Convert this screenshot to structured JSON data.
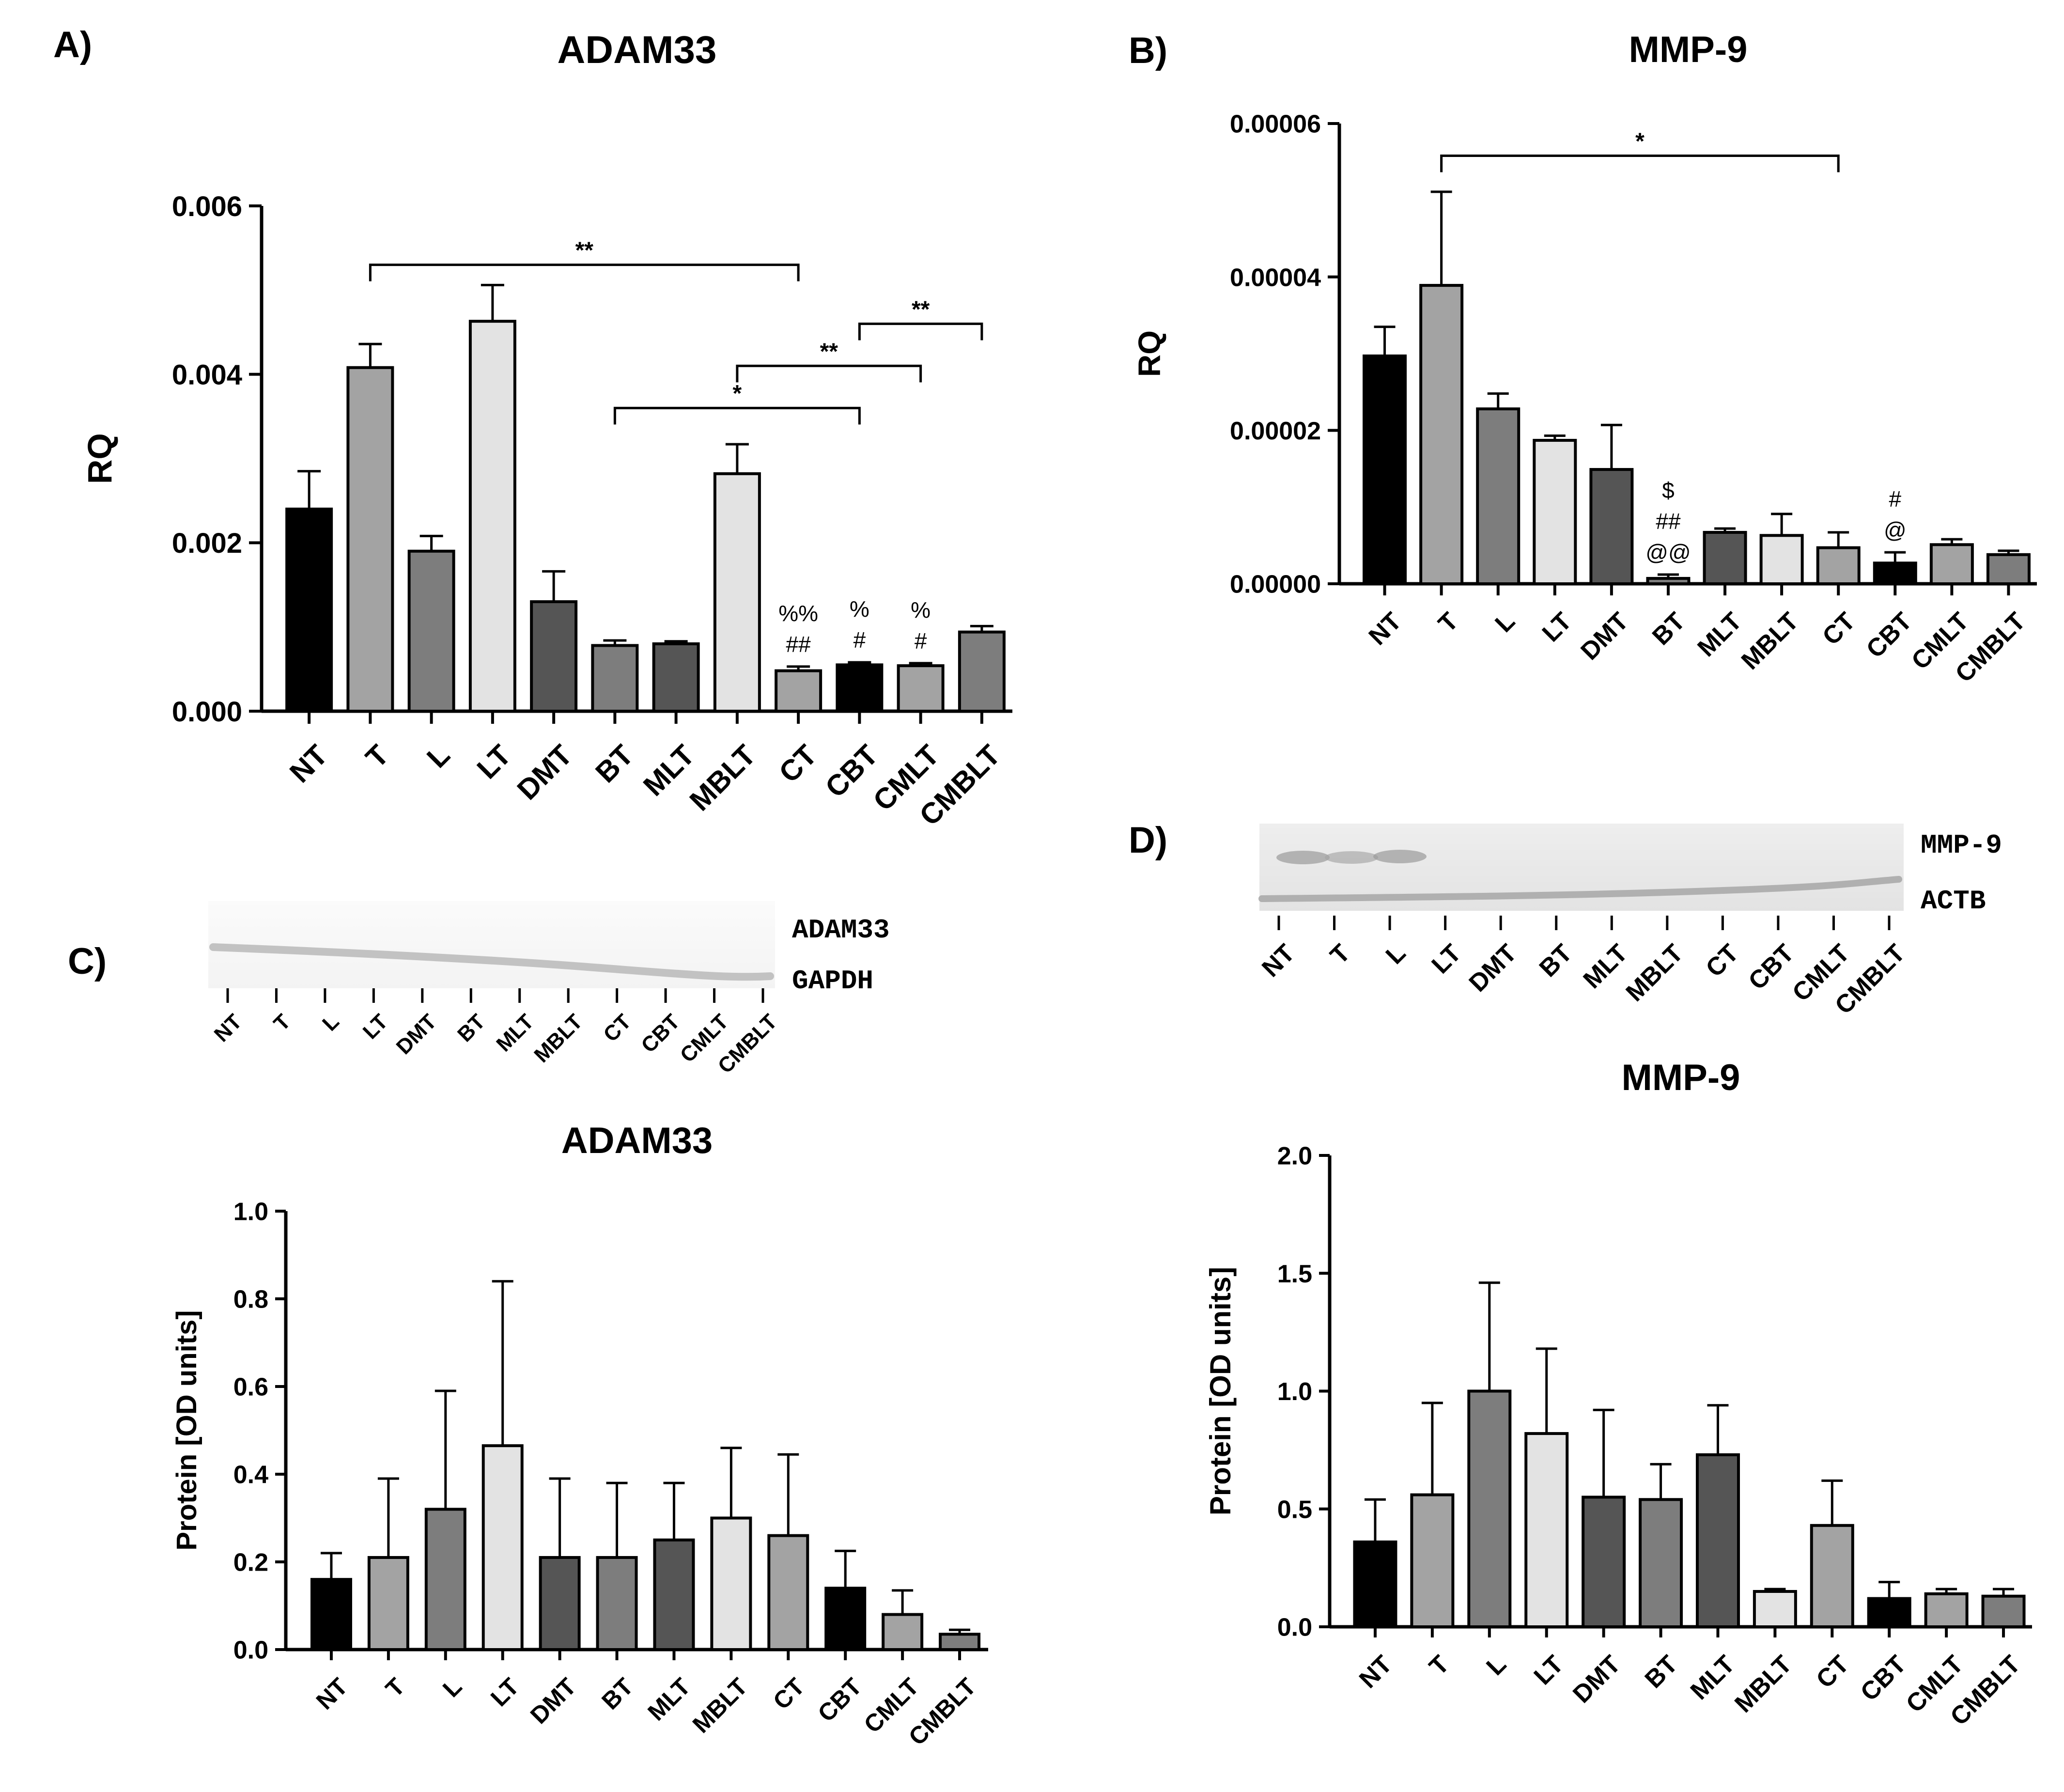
{
  "figure": {
    "panel_labels": {
      "a": "A)",
      "b": "B)",
      "c": "C)",
      "d": "D)"
    },
    "blot_c": {
      "label_top": "ADAM33",
      "label_bottom": "GAPDH",
      "lanes": [
        "NT",
        "T",
        "L",
        "LT",
        "DMT",
        "BT",
        "MLT",
        "MBLT",
        "CT",
        "CBT",
        "CMLT",
        "CMBLT"
      ]
    },
    "blot_d": {
      "label_top": "MMP-9",
      "label_bottom": "ACTB",
      "lanes": [
        "NT",
        "T",
        "L",
        "LT",
        "DMT",
        "BT",
        "MLT",
        "MBLT",
        "CT",
        "CBT",
        "CMLT",
        "CMBLT"
      ]
    }
  },
  "chart_data": [
    {
      "id": "A",
      "type": "bar",
      "title": "ADAM33",
      "xlabel": "",
      "ylabel": "RQ",
      "ylim": [
        0,
        0.006
      ],
      "yticks": [
        "0.000",
        "0.002",
        "0.004",
        "0.006"
      ],
      "categories": [
        "NT",
        "T",
        "L",
        "LT",
        "DMT",
        "BT",
        "MLT",
        "MBLT",
        "CT",
        "CBT",
        "CMLT",
        "CMBLT"
      ],
      "values": [
        0.0024,
        0.00408,
        0.0019,
        0.00463,
        0.0013,
        0.00078,
        0.0008,
        0.00282,
        0.00048,
        0.00055,
        0.00054,
        0.00094
      ],
      "errors": [
        0.00045,
        0.00028,
        0.00018,
        0.00043,
        0.00036,
        6e-05,
        3e-05,
        0.00035,
        5e-05,
        3e-05,
        3e-05,
        7e-05
      ],
      "colors": [
        "#000000",
        "#a3a3a3",
        "#7d7d7d",
        "#e3e3e3",
        "#555555",
        "#7d7d7d",
        "#555555",
        "#e3e3e3",
        "#a3a3a3",
        "#000000",
        "#a3a3a3",
        "#7d7d7d"
      ],
      "brackets": [
        {
          "from": 1,
          "to": 8,
          "y": 0.0053,
          "label": "**"
        },
        {
          "from": 9,
          "to": 11,
          "y": 0.0046,
          "label": "**"
        },
        {
          "from": 7,
          "to": 10,
          "y": 0.0041,
          "label": "**"
        },
        {
          "from": 5,
          "to": 9,
          "y": 0.0036,
          "label": "*"
        }
      ],
      "annotations": [
        {
          "index": 8,
          "lines": [
            "%%",
            "##"
          ]
        },
        {
          "index": 9,
          "lines": [
            "%",
            "#"
          ]
        },
        {
          "index": 10,
          "lines": [
            "%",
            "#"
          ]
        }
      ]
    },
    {
      "id": "B",
      "type": "bar",
      "title": "MMP-9",
      "xlabel": "",
      "ylabel": "RQ",
      "ylim": [
        0,
        6e-05
      ],
      "yticks": [
        "0.00000",
        "0.00002",
        "0.00004",
        "0.00006"
      ],
      "categories": [
        "NT",
        "T",
        "L",
        "LT",
        "DMT",
        "BT",
        "MLT",
        "MBLT",
        "CT",
        "CBT",
        "CMLT",
        "CMBLT"
      ],
      "values": [
        2.97e-05,
        3.89e-05,
        2.28e-05,
        1.87e-05,
        1.49e-05,
        7e-07,
        6.7e-06,
        6.3e-06,
        4.7e-06,
        2.7e-06,
        5.1e-06,
        3.8e-06
      ],
      "errors": [
        3.8e-06,
        1.22e-05,
        2e-06,
        6e-07,
        5.8e-06,
        5e-07,
        5e-07,
        2.8e-06,
        2e-06,
        1.4e-06,
        7e-07,
        5e-07
      ],
      "colors": [
        "#000000",
        "#a3a3a3",
        "#7d7d7d",
        "#e3e3e3",
        "#555555",
        "#7d7d7d",
        "#555555",
        "#e3e3e3",
        "#a3a3a3",
        "#000000",
        "#a3a3a3",
        "#7d7d7d"
      ],
      "brackets": [
        {
          "from": 1,
          "to": 8,
          "y": 5.58e-05,
          "label": "*"
        }
      ],
      "annotations": [
        {
          "index": 5,
          "lines": [
            "$",
            "##",
            "@@"
          ]
        },
        {
          "index": 9,
          "lines": [
            "#",
            "@"
          ]
        }
      ]
    },
    {
      "id": "C",
      "type": "bar",
      "title": "ADAM33",
      "xlabel": "",
      "ylabel": "Protein [OD units]",
      "ylim": [
        0,
        1.0
      ],
      "yticks": [
        "0.0",
        "0.2",
        "0.4",
        "0.6",
        "0.8",
        "1.0"
      ],
      "categories": [
        "NT",
        "T",
        "L",
        "LT",
        "DMT",
        "BT",
        "MLT",
        "MBLT",
        "CT",
        "CBT",
        "CMLT",
        "CMBLT"
      ],
      "values": [
        0.16,
        0.21,
        0.32,
        0.465,
        0.21,
        0.21,
        0.25,
        0.3,
        0.26,
        0.14,
        0.08,
        0.035
      ],
      "errors": [
        0.06,
        0.18,
        0.27,
        0.375,
        0.18,
        0.17,
        0.13,
        0.16,
        0.185,
        0.085,
        0.055,
        0.01
      ],
      "colors": [
        "#000000",
        "#a3a3a3",
        "#7d7d7d",
        "#e3e3e3",
        "#555555",
        "#7d7d7d",
        "#555555",
        "#e3e3e3",
        "#a3a3a3",
        "#000000",
        "#a3a3a3",
        "#7d7d7d"
      ],
      "brackets": [],
      "annotations": []
    },
    {
      "id": "D",
      "type": "bar",
      "title": "MMP-9",
      "xlabel": "",
      "ylabel": "Protein [OD units]",
      "ylim": [
        0,
        2.0
      ],
      "yticks": [
        "0.0",
        "0.5",
        "1.0",
        "1.5",
        "2.0"
      ],
      "categories": [
        "NT",
        "T",
        "L",
        "LT",
        "DMT",
        "BT",
        "MLT",
        "MBLT",
        "CT",
        "CBT",
        "CMLT",
        "CMBLT"
      ],
      "values": [
        0.36,
        0.56,
        1.0,
        0.82,
        0.55,
        0.54,
        0.73,
        0.15,
        0.43,
        0.12,
        0.14,
        0.13
      ],
      "errors": [
        0.18,
        0.39,
        0.46,
        0.36,
        0.37,
        0.15,
        0.21,
        0.01,
        0.19,
        0.07,
        0.02,
        0.03
      ],
      "colors": [
        "#000000",
        "#a3a3a3",
        "#7d7d7d",
        "#e3e3e3",
        "#555555",
        "#7d7d7d",
        "#555555",
        "#e3e3e3",
        "#a3a3a3",
        "#000000",
        "#a3a3a3",
        "#7d7d7d"
      ],
      "brackets": [],
      "annotations": []
    }
  ]
}
